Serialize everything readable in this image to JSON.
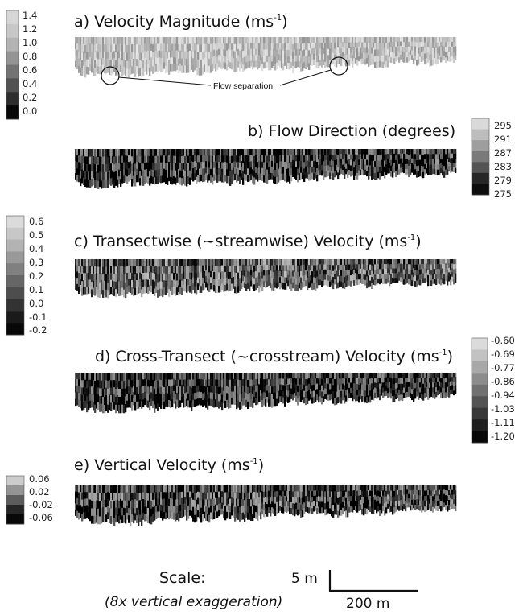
{
  "panels": [
    {
      "id": "a",
      "title": "a) Velocity Magnitude (ms",
      "unit_sup": "-1",
      "unit_close": ")",
      "colorbar": {
        "labels": [
          "1.4",
          "1.2",
          "1.0",
          "0.8",
          "0.6",
          "0.4",
          "0.2",
          "0.0"
        ],
        "levels": [
          0.84,
          0.78,
          0.7,
          0.58,
          0.45,
          0.32,
          0.18,
          0.03
        ]
      },
      "annotation": "Flow separation",
      "brightness_mean": 0.74
    },
    {
      "id": "b",
      "title": "b) Flow Direction (degrees)",
      "unit_sup": "",
      "unit_close": "",
      "colorbar": {
        "labels": [
          "295",
          "291",
          "287",
          "283",
          "279",
          "275"
        ],
        "levels": [
          0.85,
          0.74,
          0.62,
          0.48,
          0.33,
          0.15,
          0.05
        ]
      },
      "brightness_mean": 0.22
    },
    {
      "id": "c",
      "title": "c) Transectwise  (~streamwise) Velocity (ms",
      "unit_sup": "-1",
      "unit_close": ")",
      "colorbar": {
        "labels": [
          "0.6",
          "0.5",
          "0.4",
          "0.3",
          "0.2",
          "0.1",
          "0.0",
          "-0.1",
          "-0.2"
        ],
        "levels": [
          0.86,
          0.78,
          0.7,
          0.6,
          0.5,
          0.4,
          0.3,
          0.2,
          0.1,
          0.03
        ]
      },
      "brightness_mean": 0.38
    },
    {
      "id": "d",
      "title": "d) Cross-Transect (~crosstream) Velocity (ms",
      "unit_sup": "-1",
      "unit_close": ")",
      "colorbar": {
        "labels": [
          "-0.60",
          "-0.69",
          "-0.77",
          "-0.86",
          "-0.94",
          "-1.03",
          "-1.11",
          "-1.20"
        ],
        "levels": [
          0.86,
          0.76,
          0.66,
          0.55,
          0.44,
          0.33,
          0.22,
          0.12,
          0.03
        ]
      },
      "brightness_mean": 0.2
    },
    {
      "id": "e",
      "title": "e) Vertical Velocity (ms",
      "unit_sup": "-1",
      "unit_close": ")",
      "colorbar": {
        "labels": [
          "0.06",
          "0.02",
          "-0.02",
          "-0.06"
        ],
        "levels": [
          0.8,
          0.58,
          0.36,
          0.15,
          0.03
        ]
      },
      "brightness_mean": 0.26
    }
  ],
  "scale": {
    "label": "Scale:",
    "note": "(8x vertical exaggeration)",
    "vertical_bar": "5 m",
    "horizontal_bar": "200 m"
  }
}
